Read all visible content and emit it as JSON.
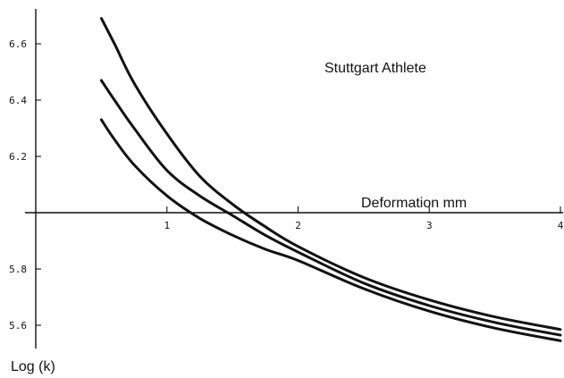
{
  "chart_data": {
    "type": "line",
    "title": "Stuttgart Athlete",
    "xlabel": "Deformation mm",
    "ylabel": "Log (k)",
    "xlim": [
      0,
      4
    ],
    "ylim": [
      5.52,
      6.75
    ],
    "axis_crossing_y": 6.0,
    "grid": false,
    "legend": "none",
    "x_ticks": [
      {
        "value": 1,
        "label": "1"
      },
      {
        "value": 2,
        "label": "2"
      },
      {
        "value": 3,
        "label": "3"
      },
      {
        "value": 4,
        "label": "4"
      }
    ],
    "y_ticks": [
      {
        "value": 5.6,
        "label": "5.6"
      },
      {
        "value": 5.8,
        "label": "5.8"
      },
      {
        "value": 6.2,
        "label": "6.2"
      },
      {
        "value": 6.4,
        "label": "6.4"
      },
      {
        "value": 6.6,
        "label": "6.6"
      }
    ],
    "series": [
      {
        "x": [
          0.5,
          0.6,
          0.75,
          1.0,
          1.25,
          1.5,
          1.75,
          2.0,
          2.5,
          3.0,
          3.5,
          4.0
        ],
        "y": [
          6.69,
          6.6,
          6.46,
          6.28,
          6.13,
          6.03,
          5.95,
          5.88,
          5.77,
          5.69,
          5.63,
          5.585
        ]
      },
      {
        "x": [
          0.5,
          0.6,
          0.75,
          1.0,
          1.25,
          1.5,
          1.75,
          2.0,
          2.5,
          3.0,
          3.5,
          4.0
        ],
        "y": [
          6.47,
          6.4,
          6.3,
          6.15,
          6.06,
          5.99,
          5.92,
          5.86,
          5.75,
          5.67,
          5.61,
          5.565
        ]
      },
      {
        "x": [
          0.5,
          0.6,
          0.75,
          1.0,
          1.25,
          1.5,
          1.75,
          2.0,
          2.5,
          3.0,
          3.5,
          4.0
        ],
        "y": [
          6.33,
          6.26,
          6.17,
          6.06,
          5.98,
          5.92,
          5.87,
          5.83,
          5.73,
          5.65,
          5.59,
          5.545
        ]
      }
    ],
    "colors": {
      "line": "#111111",
      "background": "#ffffff"
    }
  }
}
